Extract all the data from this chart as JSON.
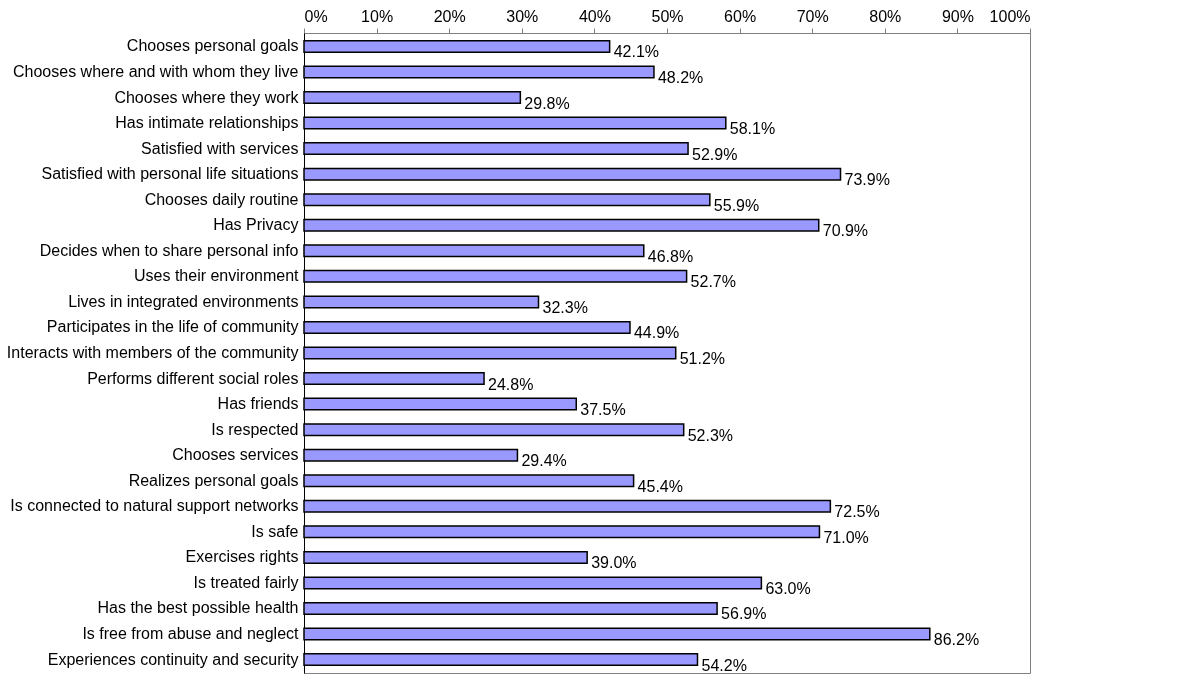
{
  "chart_data": {
    "type": "bar",
    "orientation": "horizontal",
    "categories": [
      "Chooses personal goals",
      "Chooses where and with whom they live",
      "Chooses where they work",
      "Has intimate relationships",
      "Satisfied with services",
      "Satisfied with personal life situations",
      "Chooses daily routine",
      "Has Privacy",
      "Decides when to share personal info",
      "Uses their environment",
      "Lives in integrated environments",
      "Participates in the life of community",
      "Interacts with members of the community",
      "Performs different social roles",
      "Has friends",
      "Is respected",
      "Chooses services",
      "Realizes personal goals",
      "Is connected to natural support networks",
      "Is safe",
      "Exercises rights",
      "Is treated fairly",
      "Has the best possible health",
      "Is free from abuse and neglect",
      "Experiences continuity and security"
    ],
    "values": [
      42.1,
      48.2,
      29.8,
      58.1,
      52.9,
      73.9,
      55.9,
      70.9,
      46.8,
      52.7,
      32.3,
      44.9,
      51.2,
      24.8,
      37.5,
      52.3,
      29.4,
      45.4,
      72.5,
      71.0,
      39.0,
      63.0,
      56.9,
      86.2,
      54.2
    ],
    "value_labels": [
      "42.1%",
      "48.2%",
      "29.8%",
      "58.1%",
      "52.9%",
      "73.9%",
      "55.9%",
      "70.9%",
      "46.8%",
      "52.7%",
      "32.3%",
      "44.9%",
      "51.2%",
      "24.8%",
      "37.5%",
      "52.3%",
      "29.4%",
      "45.4%",
      "72.5%",
      "71.0%",
      "39.0%",
      "63.0%",
      "56.9%",
      "86.2%",
      "54.2%"
    ],
    "color": "#9999ff",
    "xlim": [
      0,
      100
    ],
    "xticks": [
      {
        "value": 0,
        "label": "0%"
      },
      {
        "value": 10,
        "label": "10%"
      },
      {
        "value": 20,
        "label": "20%"
      },
      {
        "value": 30,
        "label": "30%"
      },
      {
        "value": 40,
        "label": "40%"
      },
      {
        "value": 50,
        "label": "50%"
      },
      {
        "value": 60,
        "label": "60%"
      },
      {
        "value": 70,
        "label": "70%"
      },
      {
        "value": 80,
        "label": "80%"
      },
      {
        "value": 90,
        "label": "90%"
      },
      {
        "value": 100,
        "label": "100%"
      }
    ],
    "grid": false
  }
}
